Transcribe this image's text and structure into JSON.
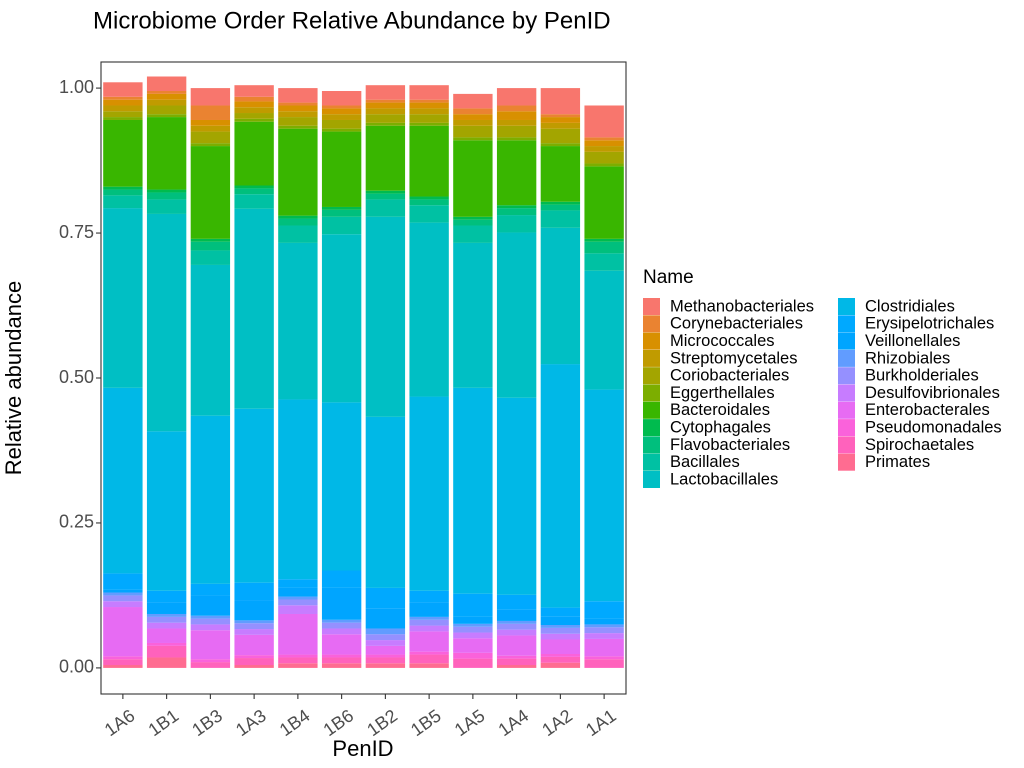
{
  "chart_data": {
    "type": "bar",
    "stacked": true,
    "title": "Microbiome Order Relative Abundance by PenID",
    "xlabel": "PenID",
    "ylabel": "Relative abundance",
    "ylim": [
      -0.045,
      1.045
    ],
    "yticks": [
      0.0,
      0.25,
      0.5,
      0.75,
      1.0
    ],
    "ytick_labels": [
      "0.00",
      "0.25",
      "0.50",
      "0.75",
      "1.00"
    ],
    "grid": false,
    "legend_title": "Name",
    "legend_position": "right",
    "categories": [
      "1A6",
      "1B1",
      "1B3",
      "1A3",
      "1B4",
      "1B6",
      "1B2",
      "1B5",
      "1A5",
      "1A4",
      "1A2",
      "1A1"
    ],
    "series": [
      {
        "name": "Methanobacteriales",
        "color": "#F8766D",
        "values": [
          0.025,
          0.025,
          0.03,
          0.02,
          0.025,
          0.025,
          0.025,
          0.025,
          0.025,
          0.03,
          0.045,
          0.055
        ]
      },
      {
        "name": "Corynebacteriales",
        "color": "#EA8331",
        "values": [
          0.005,
          0.005,
          0.025,
          0.008,
          0.005,
          0.005,
          0.005,
          0.005,
          0.01,
          0.01,
          0.005,
          0.005
        ]
      },
      {
        "name": "Micrococcales",
        "color": "#D89000",
        "values": [
          0.01,
          0.01,
          0.01,
          0.01,
          0.01,
          0.01,
          0.01,
          0.01,
          0.01,
          0.015,
          0.01,
          0.01
        ]
      },
      {
        "name": "Streptomycetales",
        "color": "#C09B00",
        "values": [
          0.01,
          0.01,
          0.01,
          0.01,
          0.01,
          0.01,
          0.01,
          0.01,
          0.01,
          0.01,
          0.01,
          0.01
        ]
      },
      {
        "name": "Coriobacteriales",
        "color": "#A3A500",
        "values": [
          0.01,
          0.015,
          0.02,
          0.01,
          0.015,
          0.015,
          0.015,
          0.015,
          0.02,
          0.02,
          0.025,
          0.02
        ]
      },
      {
        "name": "Eggerthellales",
        "color": "#7CAE00",
        "values": [
          0.005,
          0.005,
          0.005,
          0.005,
          0.005,
          0.005,
          0.005,
          0.005,
          0.005,
          0.005,
          0.005,
          0.005
        ]
      },
      {
        "name": "Bacteroidales",
        "color": "#39B600",
        "values": [
          0.115,
          0.125,
          0.16,
          0.11,
          0.15,
          0.13,
          0.112,
          0.122,
          0.132,
          0.112,
          0.096,
          0.125
        ]
      },
      {
        "name": "Cytophagales",
        "color": "#00BB4E",
        "values": [
          0.005,
          0.005,
          0.005,
          0.005,
          0.005,
          0.005,
          0.005,
          0.005,
          0.005,
          0.005,
          0.005,
          0.005
        ]
      },
      {
        "name": "Flavobacteriales",
        "color": "#00BF7D",
        "values": [
          0.01,
          0.012,
          0.015,
          0.01,
          0.012,
          0.012,
          0.01,
          0.01,
          0.01,
          0.012,
          0.01,
          0.02
        ]
      },
      {
        "name": "Bacillales",
        "color": "#00C1A3",
        "values": [
          0.022,
          0.025,
          0.025,
          0.025,
          0.03,
          0.03,
          0.03,
          0.03,
          0.03,
          0.03,
          0.03,
          0.03
        ]
      },
      {
        "name": "Lactobacillales",
        "color": "#00BFC4",
        "values": [
          0.31,
          0.375,
          0.26,
          0.345,
          0.27,
          0.29,
          0.345,
          0.3,
          0.25,
          0.285,
          0.235,
          0.205
        ]
      },
      {
        "name": "Clostridiales",
        "color": "#00B8E7",
        "values": [
          0.32,
          0.275,
          0.29,
          0.3,
          0.31,
          0.29,
          0.295,
          0.335,
          0.355,
          0.34,
          0.42,
          0.365
        ]
      },
      {
        "name": "Erysipelotrichales",
        "color": "#00A9FF",
        "values": [
          0.028,
          0.02,
          0.02,
          0.03,
          0.015,
          0.03,
          0.035,
          0.02,
          0.04,
          0.025,
          0.015,
          0.03
        ]
      },
      {
        "name": "Veillonellales",
        "color": "#00A5FF",
        "values": [
          0.005,
          0.02,
          0.035,
          0.035,
          0.015,
          0.055,
          0.035,
          0.025,
          0.012,
          0.02,
          0.015,
          0.01
        ]
      },
      {
        "name": "Rhizobiales",
        "color": "#619CFF",
        "values": [
          0.005,
          0.005,
          0.005,
          0.005,
          0.005,
          0.005,
          0.01,
          0.005,
          0.005,
          0.005,
          0.005,
          0.005
        ]
      },
      {
        "name": "Burkholderiales",
        "color": "#9590FF",
        "values": [
          0.01,
          0.01,
          0.01,
          0.01,
          0.01,
          0.01,
          0.01,
          0.01,
          0.01,
          0.01,
          0.01,
          0.01
        ]
      },
      {
        "name": "Desulfovibrionales",
        "color": "#C77CFF",
        "values": [
          0.01,
          0.01,
          0.01,
          0.01,
          0.015,
          0.01,
          0.01,
          0.01,
          0.01,
          0.01,
          0.01,
          0.01
        ]
      },
      {
        "name": "Enterobacterales",
        "color": "#E76BF3",
        "values": [
          0.085,
          0.025,
          0.05,
          0.035,
          0.07,
          0.035,
          0.015,
          0.035,
          0.025,
          0.035,
          0.025,
          0.03
        ]
      },
      {
        "name": "Pseudomonadales",
        "color": "#FA62DB",
        "values": [
          0.005,
          0.005,
          0.005,
          0.005,
          0.005,
          0.005,
          0.005,
          0.005,
          0.01,
          0.005,
          0.005,
          0.005
        ]
      },
      {
        "name": "Spirochaetales",
        "color": "#FF62BC",
        "values": [
          0.01,
          0.02,
          0.01,
          0.012,
          0.01,
          0.01,
          0.01,
          0.015,
          0.016,
          0.011,
          0.01,
          0.015
        ]
      },
      {
        "name": "Primates",
        "color": "#FF6C91",
        "values": [
          0.005,
          0.018,
          0.0,
          0.005,
          0.008,
          0.008,
          0.008,
          0.008,
          0.0,
          0.005,
          0.009,
          0.0
        ]
      }
    ]
  }
}
